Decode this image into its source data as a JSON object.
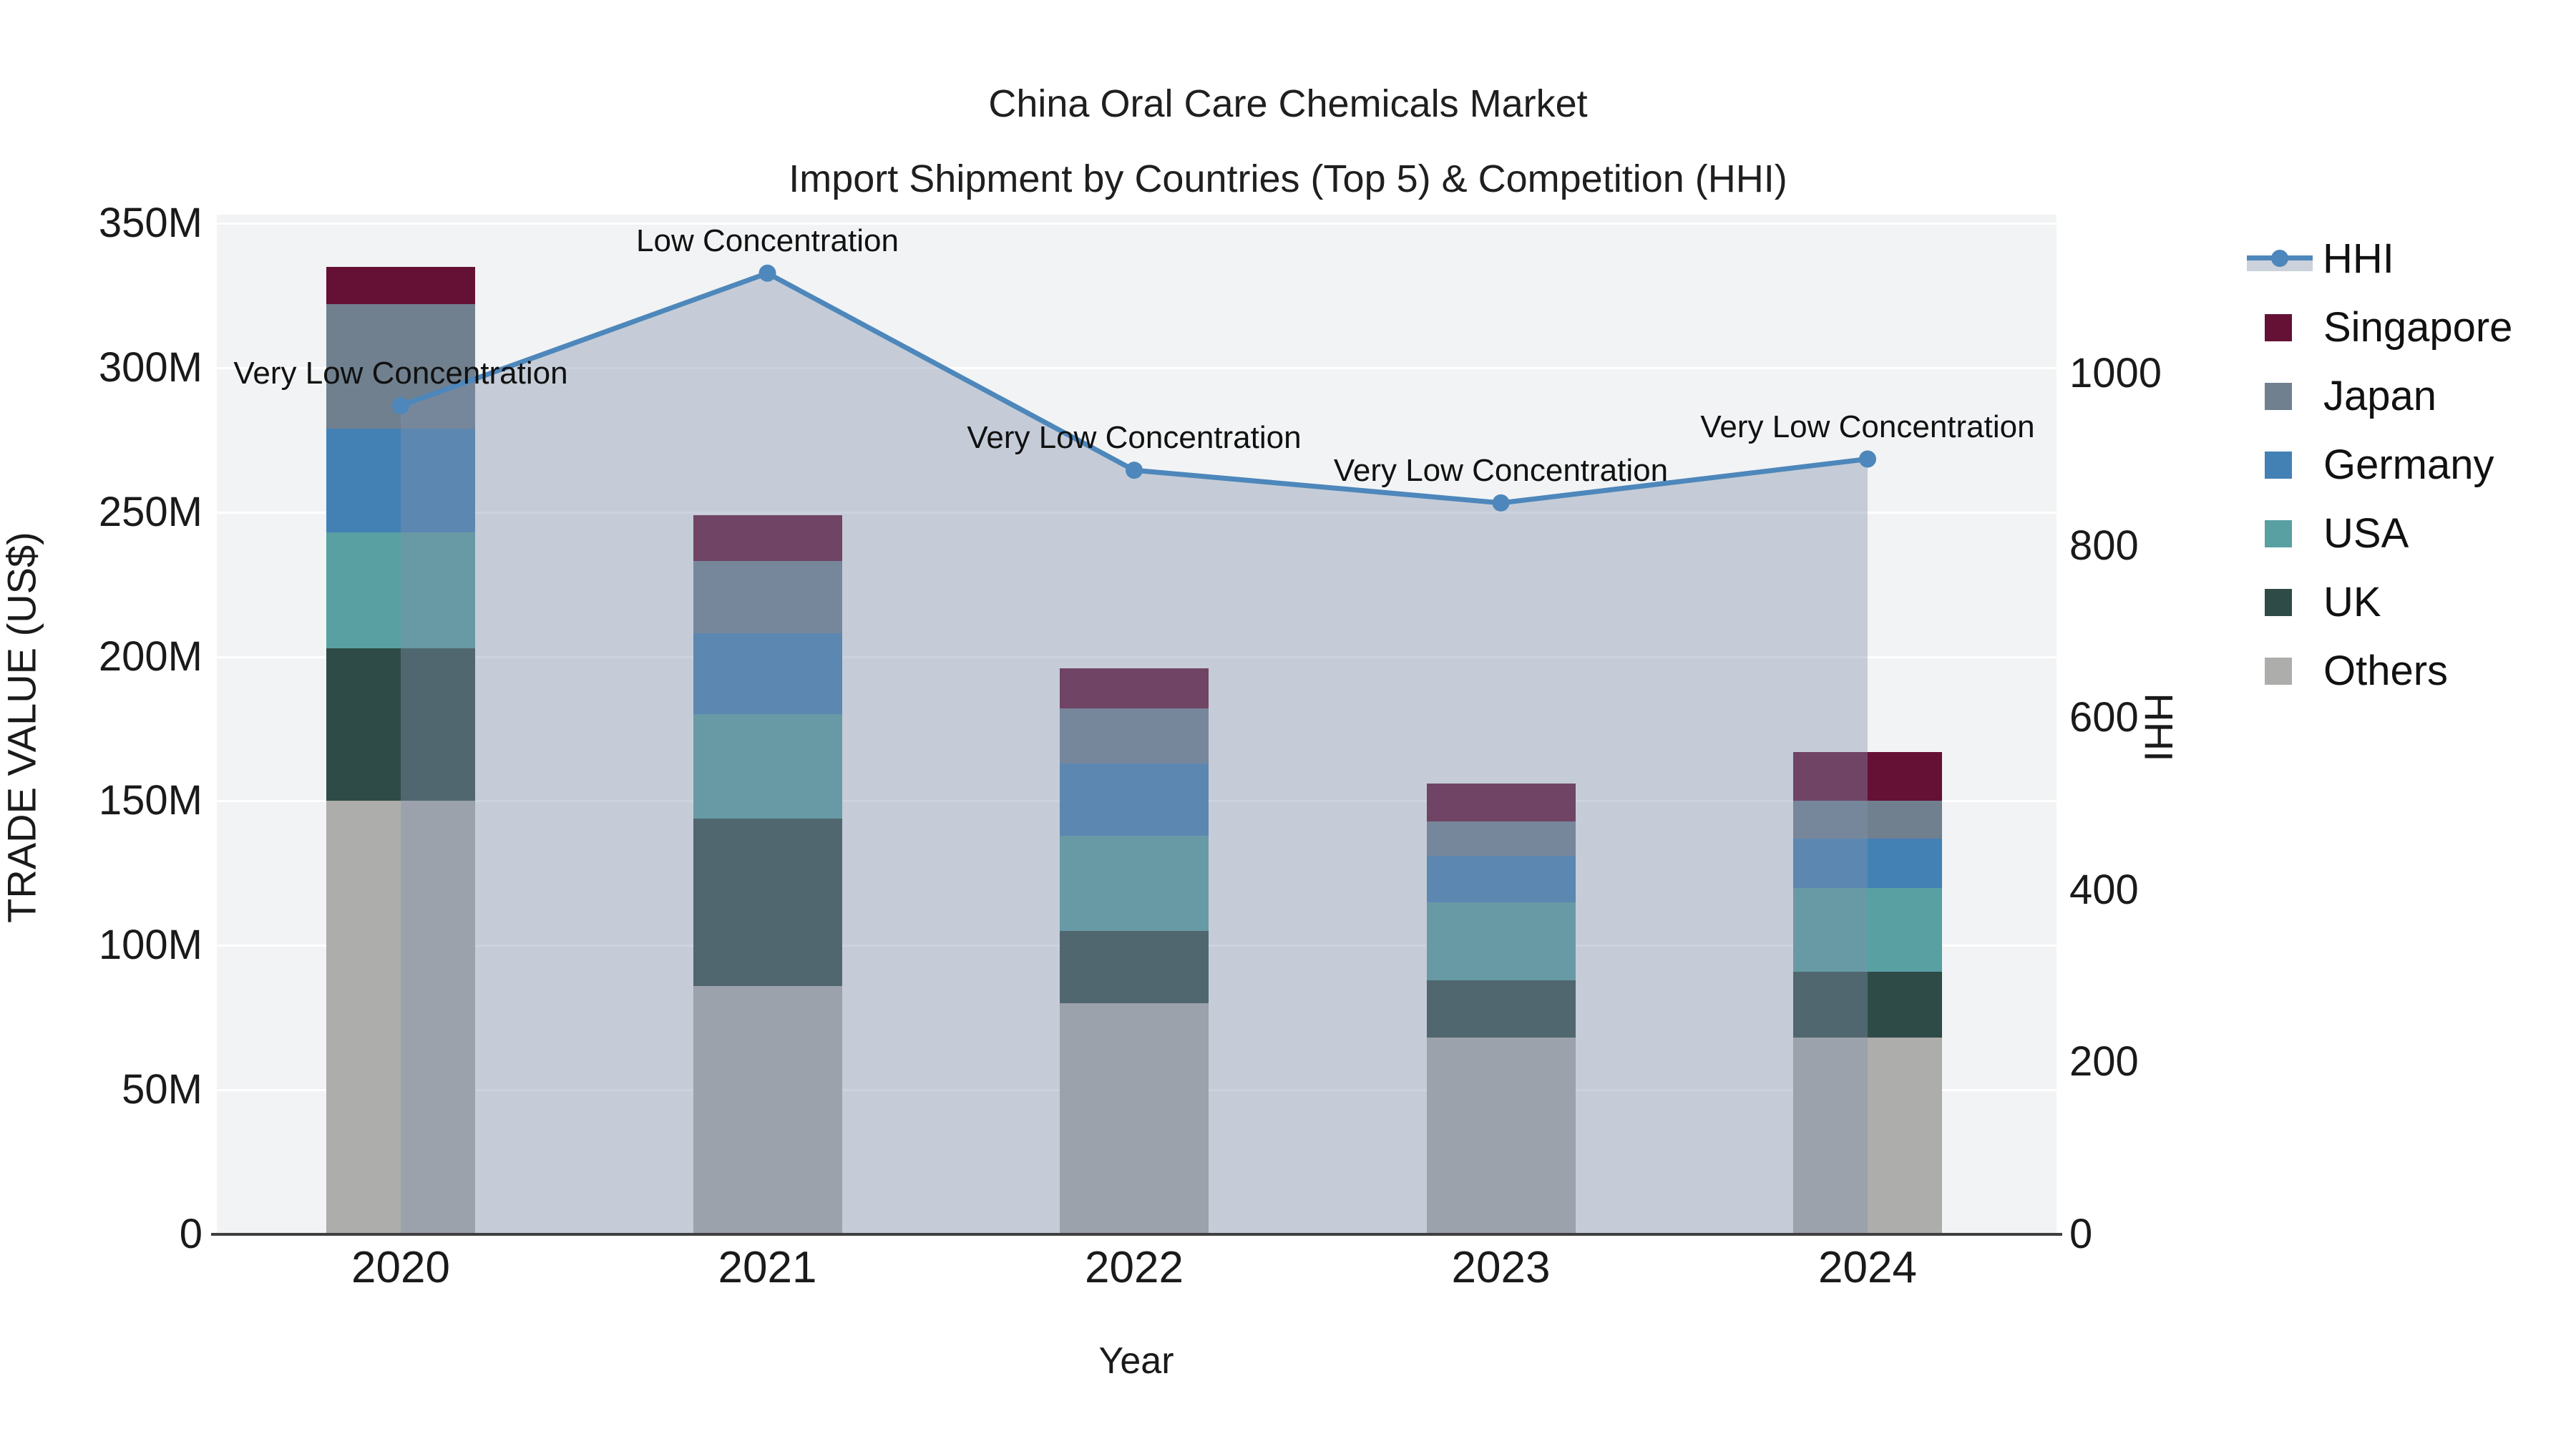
{
  "title": {
    "line1": "China Oral Care Chemicals Market",
    "line2": "Import Shipment by Countries (Top 5) & Competition (HHI)"
  },
  "axes": {
    "x": {
      "title": "Year",
      "ticks": [
        "2020",
        "2021",
        "2022",
        "2023",
        "2024"
      ]
    },
    "y_left": {
      "title": "TRADE VALUE (US$)",
      "ticks": [
        "0",
        "50M",
        "100M",
        "150M",
        "200M",
        "250M",
        "300M",
        "350M"
      ],
      "tick_values": [
        0,
        50,
        100,
        150,
        200,
        250,
        300,
        350
      ]
    },
    "y_right": {
      "title": "HHI",
      "ticks": [
        "0",
        "200",
        "400",
        "600",
        "800",
        "1000"
      ],
      "tick_values": [
        0,
        200,
        400,
        600,
        800,
        1000
      ]
    }
  },
  "legend": [
    {
      "label": "HHI",
      "type": "line",
      "color": "#4d87bb"
    },
    {
      "label": "Singapore",
      "type": "swatch",
      "color": "#641135"
    },
    {
      "label": "Japan",
      "type": "swatch",
      "color": "#70808f"
    },
    {
      "label": "Germany",
      "type": "swatch",
      "color": "#4381b5"
    },
    {
      "label": "USA",
      "type": "swatch",
      "color": "#58a0a2"
    },
    {
      "label": "UK",
      "type": "swatch",
      "color": "#2f4b47"
    },
    {
      "label": "Others",
      "type": "swatch",
      "color": "#adadab"
    }
  ],
  "colors": {
    "plot_background": "#f2f3f4",
    "figure_background": "#ffffff",
    "gridline": "#ffffff",
    "axis_spine": "#3f3f3f",
    "hhi_line": "#4d87bb",
    "hhi_area_fill": "rgba(130,145,172,0.4)",
    "text": "#1a1a1a"
  },
  "chart_data": {
    "type": "bar",
    "subtype": "stacked-bar-with-line",
    "title": "China Oral Care Chemicals Market — Import Shipment by Countries (Top 5) & Competition (HHI)",
    "categories": [
      "2020",
      "2021",
      "2022",
      "2023",
      "2024"
    ],
    "xlabel": "Year",
    "ylabel": "TRADE VALUE (US$)",
    "ylabel_right": "HHI",
    "unit": "US$ millions",
    "ylim_left": [
      0,
      353
    ],
    "ylim_right": [
      0,
      1185
    ],
    "grid": true,
    "legend_position": "right",
    "series": [
      {
        "name": "Others",
        "axis": "left",
        "color": "#adadab",
        "values": [
          150,
          86,
          80,
          68,
          68
        ]
      },
      {
        "name": "UK",
        "axis": "left",
        "color": "#2f4b47",
        "values": [
          53,
          58,
          25,
          20,
          23
        ]
      },
      {
        "name": "USA",
        "axis": "left",
        "color": "#58a0a2",
        "values": [
          40,
          36,
          33,
          27,
          29
        ]
      },
      {
        "name": "Germany",
        "axis": "left",
        "color": "#4381b5",
        "values": [
          36,
          28,
          25,
          16,
          17
        ]
      },
      {
        "name": "Japan",
        "axis": "left",
        "color": "#70808f",
        "values": [
          43,
          25,
          19,
          12,
          13
        ]
      },
      {
        "name": "Singapore",
        "axis": "left",
        "color": "#641135",
        "values": [
          13,
          16,
          14,
          13,
          17
        ]
      }
    ],
    "totals": [
      335,
      249,
      196,
      156,
      167
    ],
    "line_series": {
      "name": "HHI",
      "axis": "right",
      "color": "#4d87bb",
      "area_fill": "rgba(130,145,172,0.4)",
      "values": [
        963,
        1117,
        888,
        850,
        901
      ]
    },
    "annotations": [
      {
        "category": "2020",
        "text": "Very Low Concentration"
      },
      {
        "category": "2021",
        "text": "Low Concentration"
      },
      {
        "category": "2022",
        "text": "Very Low Concentration"
      },
      {
        "category": "2023",
        "text": "Very Low Concentration"
      },
      {
        "category": "2024",
        "text": "Very Low Concentration"
      }
    ]
  }
}
